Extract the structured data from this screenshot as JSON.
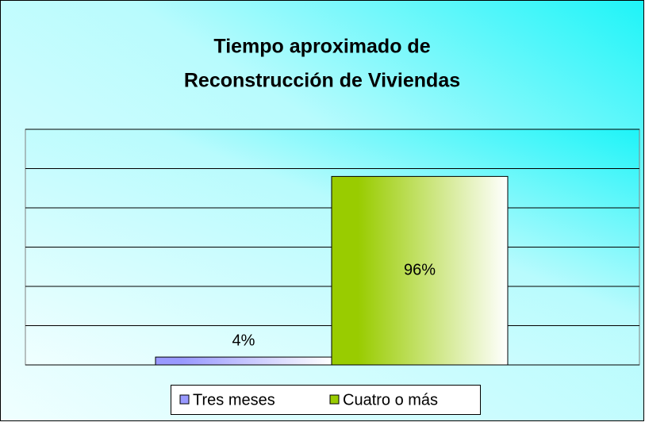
{
  "chart_data": {
    "type": "bar",
    "title": [
      "Tiempo aproximado de",
      "Reconstrucción de Viviendas"
    ],
    "series": [
      {
        "name": "Tres meses",
        "color": "#9999ff",
        "values": [
          4
        ],
        "value_labels": [
          "4%"
        ]
      },
      {
        "name": "Cuatro o más",
        "color": "#99cc00",
        "values": [
          96
        ],
        "value_labels": [
          "96%"
        ]
      }
    ],
    "ylim": [
      0,
      120
    ],
    "yticks": [
      0,
      20,
      40,
      60,
      80,
      100,
      120
    ],
    "grid": true,
    "legend": "bottom"
  }
}
